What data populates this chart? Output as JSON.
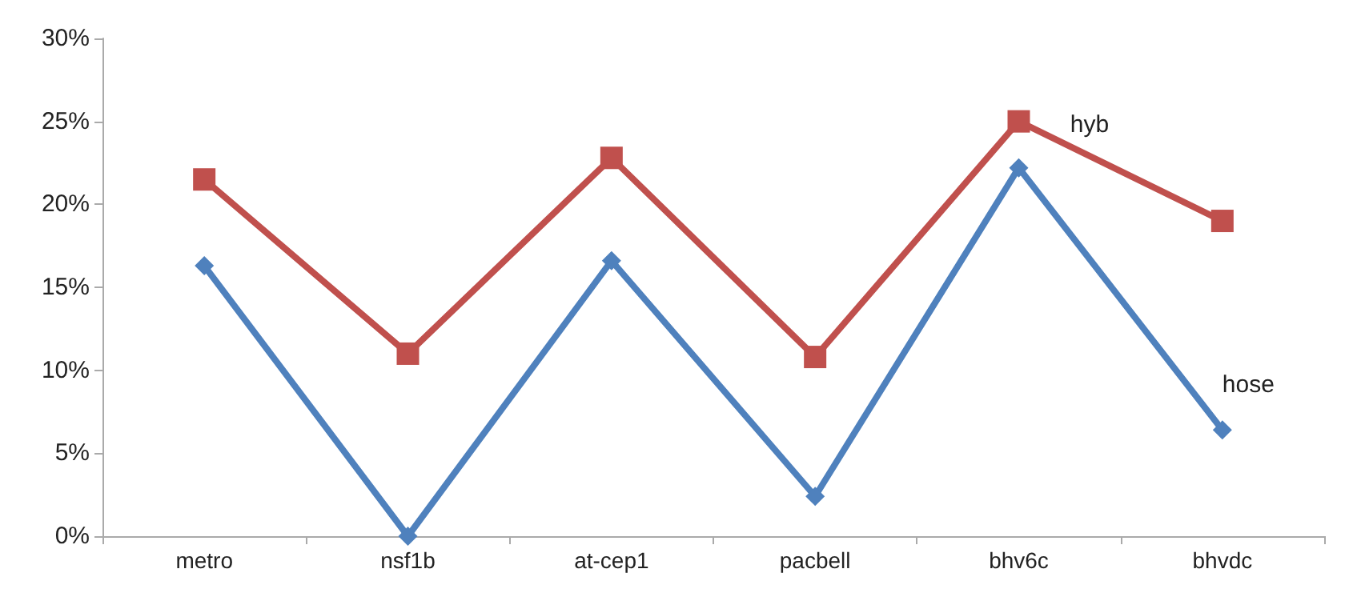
{
  "chart_data": {
    "type": "line",
    "categories": [
      "metro",
      "nsf1b",
      "at-cep1",
      "pacbell",
      "bhv6c",
      "bhvdc"
    ],
    "series": [
      {
        "name": "hose",
        "color": "#4f81bd",
        "marker": "diamond",
        "values": [
          16.3,
          0,
          16.6,
          2.4,
          22.2,
          6.4
        ]
      },
      {
        "name": "hyb",
        "color": "#c0504d",
        "marker": "square",
        "values": [
          21.5,
          11.0,
          22.8,
          10.8,
          25.0,
          19.0
        ]
      }
    ],
    "ylim": [
      0,
      30
    ],
    "yticks": [
      {
        "value": 0,
        "label": "0%"
      },
      {
        "value": 5,
        "label": "5%"
      },
      {
        "value": 10,
        "label": "10%"
      },
      {
        "value": 15,
        "label": "15%"
      },
      {
        "value": 20,
        "label": "20%"
      },
      {
        "value": 25,
        "label": "25%"
      },
      {
        "value": 30,
        "label": "30%"
      }
    ],
    "grid": false,
    "legend": false
  }
}
